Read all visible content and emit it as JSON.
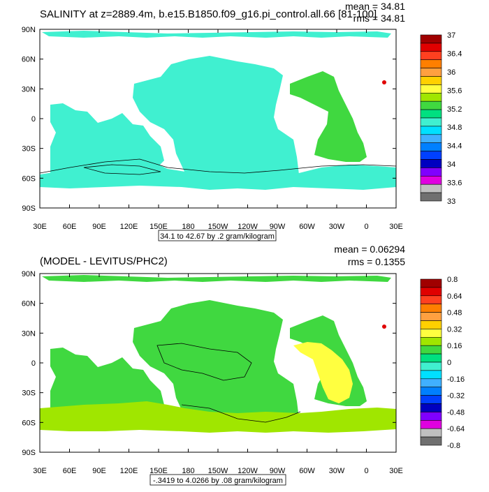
{
  "panels": [
    {
      "title": "SALINITY at z=2889.4m, b.e15.B1850.f09_g16.pi_control.all.66 [81-100]",
      "stats": {
        "mean": "mean = 34.81",
        "rms": "rms = 34.81"
      },
      "range_label": "34.1 to 42.67 by .2 gram/kilogram",
      "lat_labels": [
        "90N",
        "60N",
        "30N",
        "0",
        "30S",
        "60S",
        "90S"
      ],
      "lon_labels": [
        "30E",
        "60E",
        "90E",
        "120E",
        "150E",
        "180",
        "150W",
        "120W",
        "90W",
        "60W",
        "30W",
        "0",
        "30E"
      ],
      "colorbar": {
        "labels": [
          "37",
          "36.4",
          "36",
          "35.6",
          "35.2",
          "34.8",
          "34.4",
          "34",
          "33.6",
          "33"
        ],
        "colors": [
          "#a00000",
          "#e00000",
          "#ff4020",
          "#ff7f00",
          "#ffa040",
          "#ffd000",
          "#ffff40",
          "#a0e600",
          "#40d840",
          "#00e080",
          "#40f0d0",
          "#00e0ff",
          "#40b0ff",
          "#0080ff",
          "#0040ff",
          "#0000c0",
          "#8000ff",
          "#e000e0",
          "#c0c0c0",
          "#707070"
        ]
      },
      "regions": [
        {
          "name": "pacific",
          "color": "#40f0d0"
        },
        {
          "name": "indian",
          "color": "#40f0d0"
        },
        {
          "name": "atlantic",
          "color": "#40d840"
        },
        {
          "name": "southern",
          "color": "#40f0d0"
        },
        {
          "name": "arctic",
          "color": "#40f0d0"
        }
      ]
    },
    {
      "title": "(MODEL - LEVITUS/PHC2)",
      "stats": {
        "mean": "mean = 0.06294",
        "rms": "rms = 0.1355"
      },
      "range_label": "-.3419 to 4.0266 by .08 gram/kilogram",
      "lat_labels": [
        "90N",
        "60N",
        "30N",
        "0",
        "30S",
        "60S",
        "90S"
      ],
      "lon_labels": [
        "30E",
        "60E",
        "90E",
        "120E",
        "150E",
        "180",
        "150W",
        "120W",
        "90W",
        "60W",
        "30W",
        "0",
        "30E"
      ],
      "colorbar": {
        "labels": [
          "0.8",
          "0.64",
          "0.48",
          "0.32",
          "0.16",
          "0",
          "-0.16",
          "-0.32",
          "-0.48",
          "-0.64",
          "-0.8"
        ],
        "colors": [
          "#a00000",
          "#e00000",
          "#ff4020",
          "#ff7f00",
          "#ffa040",
          "#ffd000",
          "#ffff40",
          "#a0e600",
          "#40d840",
          "#00e080",
          "#40f0d0",
          "#00e0ff",
          "#40b0ff",
          "#0080ff",
          "#0040ff",
          "#0000c0",
          "#8000ff",
          "#e000e0",
          "#c0c0c0",
          "#707070"
        ]
      },
      "regions": [
        {
          "name": "pacific",
          "color": "#40d840"
        },
        {
          "name": "indian",
          "color": "#40d840"
        },
        {
          "name": "atlantic",
          "color": "#40d840"
        },
        {
          "name": "southern",
          "color": "#a0e600"
        },
        {
          "name": "arctic",
          "color": "#40d840"
        },
        {
          "name": "atlantic-anomaly",
          "color": "#ffff40"
        }
      ]
    }
  ]
}
